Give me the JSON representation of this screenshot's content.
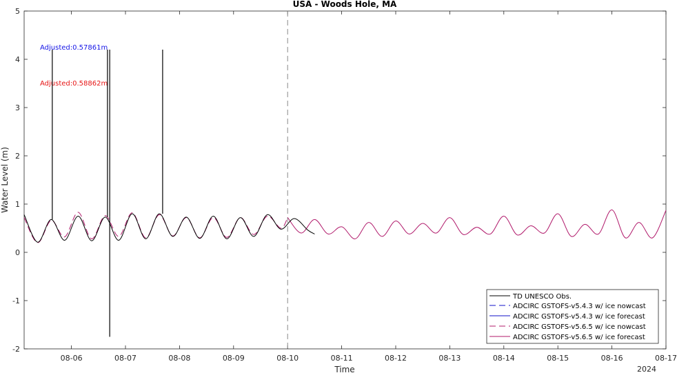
{
  "chart_data": {
    "type": "line",
    "title": "USA - Woods Hole, MA",
    "xlabel": "Time",
    "ylabel": "Water Level (m)",
    "year_label": "2024",
    "xlim": [
      "2024-08-05T03:00",
      "2024-08-17T00:00"
    ],
    "ylim": [
      -2,
      5
    ],
    "x_ticks": [
      "08-06",
      "08-07",
      "08-08",
      "08-09",
      "08-10",
      "08-11",
      "08-12",
      "08-13",
      "08-14",
      "08-15",
      "08-16",
      "08-17"
    ],
    "y_ticks": [
      "-2",
      "-1",
      "0",
      "1",
      "2",
      "3",
      "4",
      "5"
    ],
    "grid": false,
    "legend_position": "bottom-right",
    "vertical_marker": "2024-08-10T00:00",
    "annotations": [
      {
        "text": "Adjusted:0.57861m",
        "color": "#1414e6"
      },
      {
        "text": "Adjusted:0.58862m",
        "color": "#e61414"
      }
    ],
    "legend": [
      {
        "label": "TD UNESCO Obs.",
        "color": "#000000",
        "dash": "solid"
      },
      {
        "label": "ADCIRC GSTOFS-v5.4.3 w/ ice nowcast",
        "color": "#1010c8",
        "dash": "dashed"
      },
      {
        "label": "ADCIRC GSTOFS-v5.4.3 w/ ice forecast",
        "color": "#1010c8",
        "dash": "solid"
      },
      {
        "label": "ADCIRC GSTOFS-v5.6.5 w/ ice nowcast",
        "color": "#b0186a",
        "dash": "dashed"
      },
      {
        "label": "ADCIRC GSTOFS-v5.6.5 w/ ice forecast",
        "color": "#b0186a",
        "dash": "solid"
      }
    ],
    "spikes": [
      {
        "time": "2024-08-05T15:30",
        "value": 4.2
      },
      {
        "time": "2024-08-06T16:00",
        "value": 4.2
      },
      {
        "time": "2024-08-06T17:00",
        "value": 4.2
      },
      {
        "time": "2024-08-06T17:00",
        "value": -1.75
      },
      {
        "time": "2024-08-07T16:30",
        "value": 4.2
      }
    ],
    "series": [
      {
        "name": "TD UNESCO Obs.",
        "x": [
          "2024-08-05T03:00",
          "2024-08-05T09:00",
          "2024-08-05T15:00",
          "2024-08-05T21:00",
          "2024-08-06T03:00",
          "2024-08-06T09:00",
          "2024-08-06T15:00",
          "2024-08-06T21:00",
          "2024-08-07T03:00",
          "2024-08-07T09:00",
          "2024-08-07T15:00",
          "2024-08-07T21:00",
          "2024-08-08T03:00",
          "2024-08-08T09:00",
          "2024-08-08T15:00",
          "2024-08-08T21:00",
          "2024-08-09T03:00",
          "2024-08-09T09:00",
          "2024-08-09T15:00",
          "2024-08-09T21:00",
          "2024-08-10T03:00",
          "2024-08-10T09:00",
          "2024-08-10T12:00"
        ],
        "values": [
          0.78,
          0.21,
          0.68,
          0.25,
          0.75,
          0.24,
          0.73,
          0.25,
          0.8,
          0.28,
          0.8,
          0.33,
          0.73,
          0.29,
          0.75,
          0.28,
          0.72,
          0.33,
          0.78,
          0.48,
          0.7,
          0.46,
          0.38
        ]
      },
      {
        "name": "ADCIRC GSTOFS-v5.6.5 w/ ice nowcast",
        "x": [
          "2024-08-05T03:00",
          "2024-08-05T09:00",
          "2024-08-05T15:00",
          "2024-08-05T21:00",
          "2024-08-06T03:00",
          "2024-08-06T09:00",
          "2024-08-06T15:00",
          "2024-08-06T21:00",
          "2024-08-07T03:00",
          "2024-08-07T09:00",
          "2024-08-07T15:00",
          "2024-08-07T21:00",
          "2024-08-08T03:00",
          "2024-08-08T09:00",
          "2024-08-08T15:00",
          "2024-08-08T21:00",
          "2024-08-09T03:00",
          "2024-08-09T09:00",
          "2024-08-09T15:00",
          "2024-08-09T21:00",
          "2024-08-10T00:00"
        ],
        "values": [
          0.72,
          0.2,
          0.66,
          0.32,
          0.83,
          0.28,
          0.76,
          0.33,
          0.82,
          0.3,
          0.78,
          0.34,
          0.72,
          0.3,
          0.72,
          0.31,
          0.72,
          0.37,
          0.75,
          0.5,
          0.72
        ]
      },
      {
        "name": "ADCIRC GSTOFS-v5.6.5 w/ ice forecast",
        "x": [
          "2024-08-10T00:00",
          "2024-08-10T06:00",
          "2024-08-10T12:00",
          "2024-08-10T18:00",
          "2024-08-11T00:00",
          "2024-08-11T06:00",
          "2024-08-11T12:00",
          "2024-08-11T18:00",
          "2024-08-12T00:00",
          "2024-08-12T06:00",
          "2024-08-12T12:00",
          "2024-08-12T18:00",
          "2024-08-13T00:00",
          "2024-08-13T06:00",
          "2024-08-13T12:00",
          "2024-08-13T18:00",
          "2024-08-14T00:00",
          "2024-08-14T06:00",
          "2024-08-14T12:00",
          "2024-08-14T18:00",
          "2024-08-15T00:00",
          "2024-08-15T06:00",
          "2024-08-15T12:00",
          "2024-08-15T18:00",
          "2024-08-16T00:00",
          "2024-08-16T06:00",
          "2024-08-16T12:00",
          "2024-08-16T18:00",
          "2024-08-17T00:00"
        ],
        "values": [
          0.72,
          0.4,
          0.68,
          0.38,
          0.53,
          0.28,
          0.62,
          0.33,
          0.65,
          0.38,
          0.6,
          0.4,
          0.72,
          0.37,
          0.52,
          0.38,
          0.75,
          0.36,
          0.55,
          0.4,
          0.8,
          0.33,
          0.58,
          0.38,
          0.88,
          0.3,
          0.62,
          0.3,
          0.87
        ]
      }
    ]
  }
}
